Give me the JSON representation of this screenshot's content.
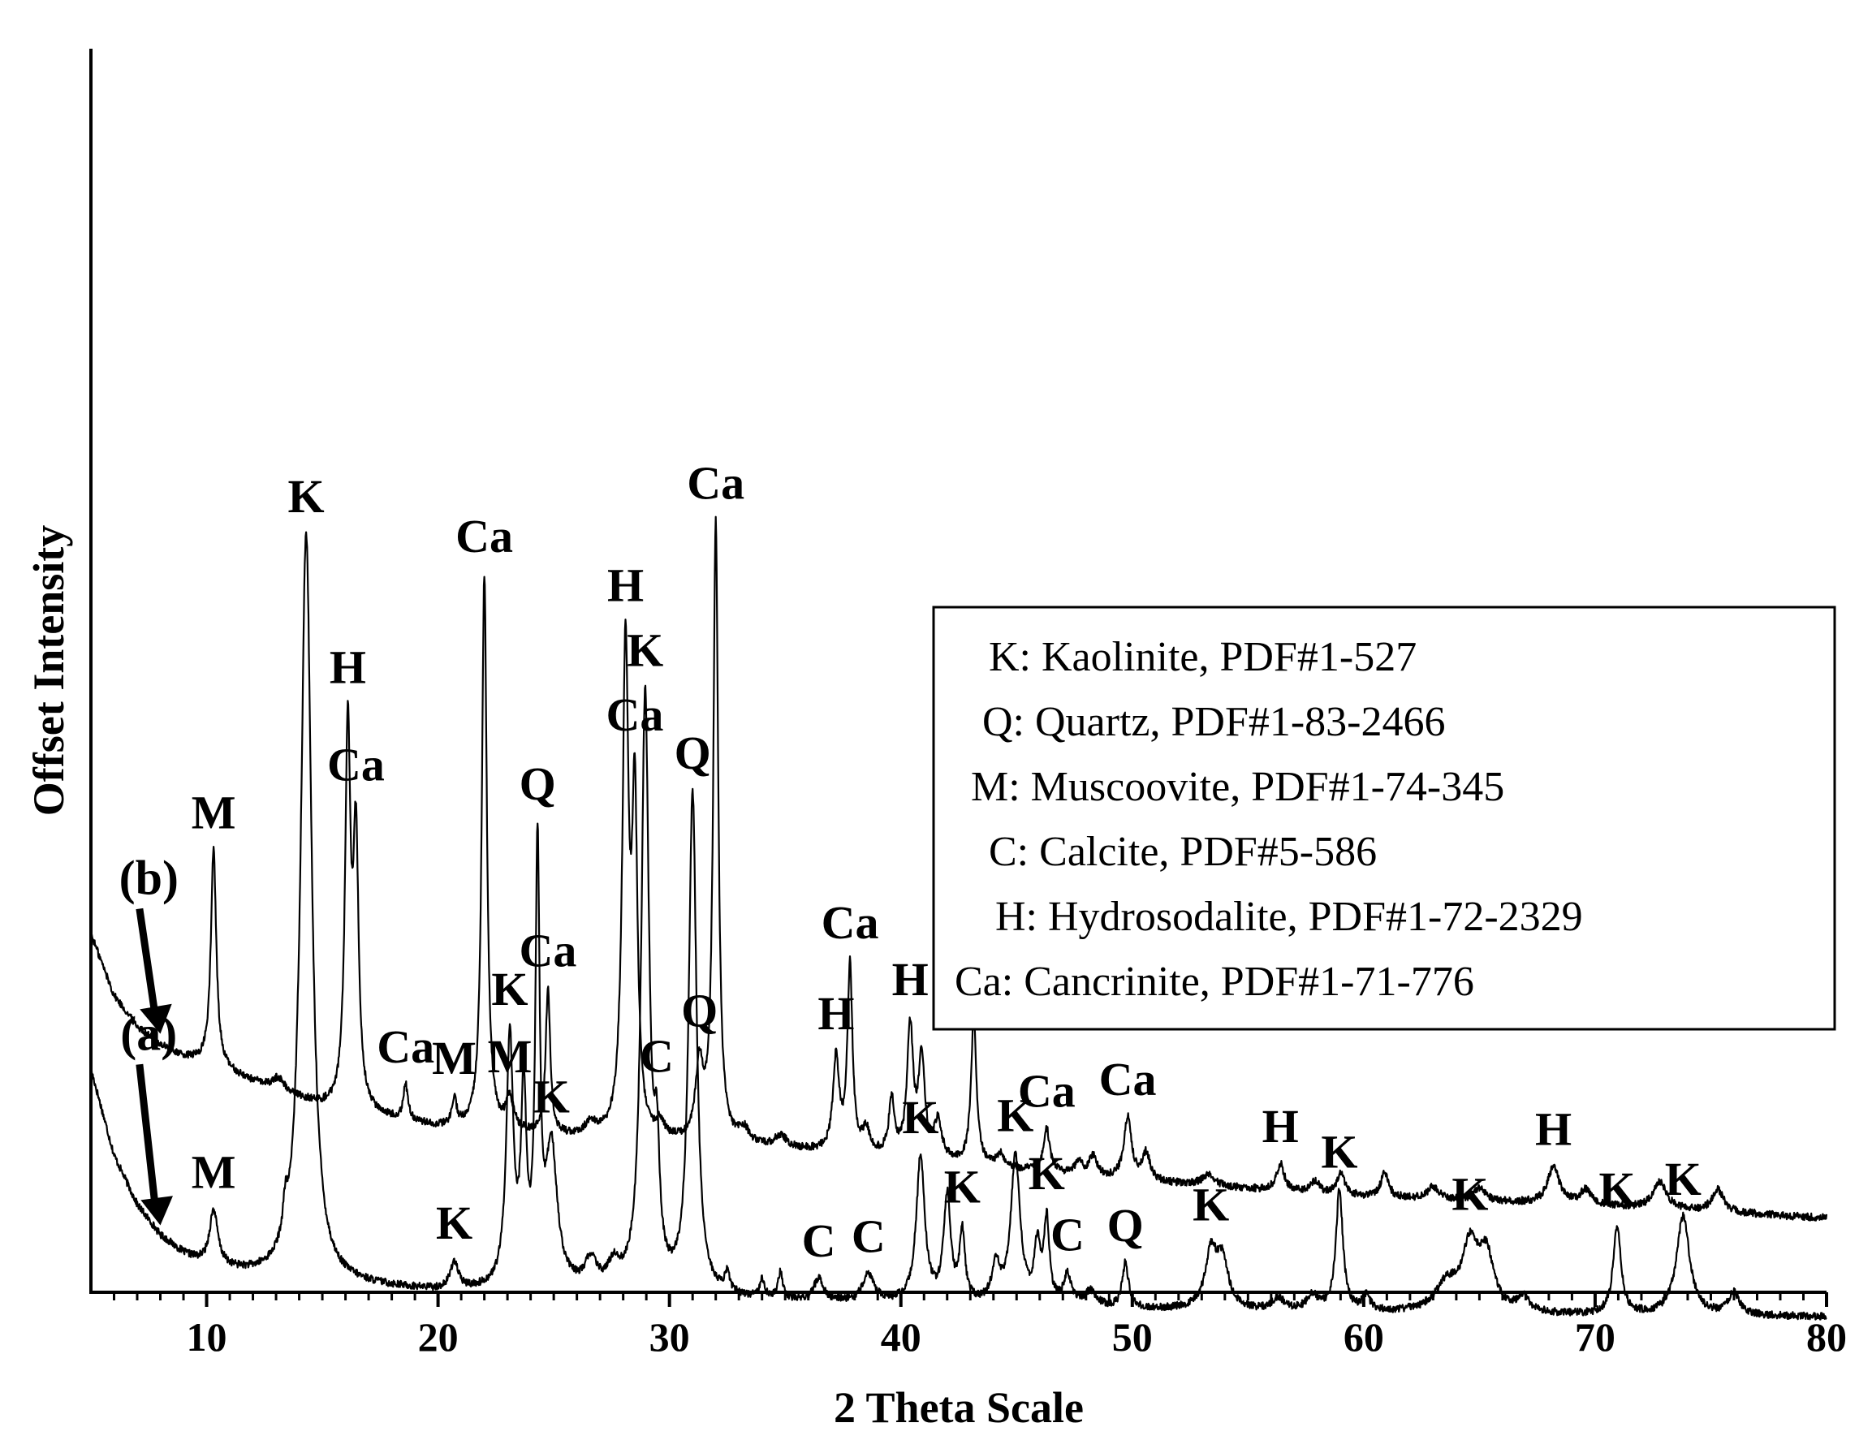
{
  "chart_data": {
    "type": "line",
    "xlabel": "2 Theta Scale",
    "ylabel": "Offset Intensity",
    "xlim": [
      5,
      80
    ],
    "x_ticks": [
      10,
      20,
      30,
      40,
      50,
      60,
      70,
      80
    ],
    "x_tick_labels": [
      "10",
      "20",
      "30",
      "40",
      "50",
      "60",
      "70",
      "80"
    ],
    "y_ticks": "none",
    "series": [
      {
        "name": "(a)",
        "baseline": [
          [
            5,
            0.18
          ],
          [
            6,
            0.11
          ],
          [
            7,
            0.07
          ],
          [
            8,
            0.045
          ],
          [
            9,
            0.03
          ],
          [
            10,
            0.02
          ],
          [
            12,
            0.013
          ],
          [
            15,
            0.007
          ],
          [
            20,
            0.0
          ],
          [
            25,
            0.0
          ],
          [
            30,
            -0.004
          ],
          [
            35,
            -0.008
          ],
          [
            40,
            -0.01
          ],
          [
            50,
            -0.014
          ],
          [
            60,
            -0.017
          ],
          [
            70,
            -0.019
          ],
          [
            80,
            -0.02
          ]
        ],
        "peaks": [
          {
            "x": 10.3,
            "h": 0.045,
            "w": 0.22,
            "label": "M"
          },
          {
            "x": 13.4,
            "h": 0.025,
            "w": 0.12,
            "label": ""
          },
          {
            "x": 14.3,
            "h": 0.605,
            "w": 0.28,
            "label": "K"
          },
          {
            "x": 20.7,
            "h": 0.022,
            "w": 0.2,
            "label": "K"
          },
          {
            "x": 23.1,
            "h": 0.2,
            "w": 0.18,
            "label": "K"
          },
          {
            "x": 23.7,
            "h": 0.15,
            "w": 0.14,
            "label": ""
          },
          {
            "x": 24.3,
            "h": 0.345,
            "w": 0.11,
            "label": "Q"
          },
          {
            "x": 24.9,
            "h": 0.11,
            "w": 0.3,
            "label": "K"
          },
          {
            "x": 26.6,
            "h": 0.022,
            "w": 0.3,
            "label": ""
          },
          {
            "x": 27.6,
            "h": 0.018,
            "w": 0.3,
            "label": ""
          },
          {
            "x": 28.95,
            "h": 0.48,
            "w": 0.2,
            "label": "K"
          },
          {
            "x": 29.45,
            "h": 0.09,
            "w": 0.14,
            "label": "C"
          },
          {
            "x": 31.0,
            "h": 0.405,
            "w": 0.2,
            "label": "Q"
          },
          {
            "x": 32.5,
            "h": 0.016,
            "w": 0.12,
            "label": ""
          },
          {
            "x": 34.0,
            "h": 0.016,
            "w": 0.12,
            "label": ""
          },
          {
            "x": 34.8,
            "h": 0.022,
            "w": 0.12,
            "label": ""
          },
          {
            "x": 36.45,
            "h": 0.018,
            "w": 0.25,
            "label": "C"
          },
          {
            "x": 38.6,
            "h": 0.022,
            "w": 0.3,
            "label": "C"
          },
          {
            "x": 40.85,
            "h": 0.118,
            "w": 0.22,
            "label": "K"
          },
          {
            "x": 42.0,
            "h": 0.085,
            "w": 0.18,
            "label": ""
          },
          {
            "x": 42.65,
            "h": 0.056,
            "w": 0.14,
            "label": "K"
          },
          {
            "x": 44.1,
            "h": 0.03,
            "w": 0.2,
            "label": ""
          },
          {
            "x": 44.95,
            "h": 0.12,
            "w": 0.24,
            "label": "K"
          },
          {
            "x": 45.9,
            "h": 0.046,
            "w": 0.16,
            "label": ""
          },
          {
            "x": 46.3,
            "h": 0.066,
            "w": 0.14,
            "label": "K"
          },
          {
            "x": 47.2,
            "h": 0.024,
            "w": 0.2,
            "label": "C"
          },
          {
            "x": 48.2,
            "h": 0.012,
            "w": 0.3,
            "label": ""
          },
          {
            "x": 49.7,
            "h": 0.036,
            "w": 0.16,
            "label": "Q"
          },
          {
            "x": 53.4,
            "h": 0.045,
            "w": 0.3,
            "label": "K"
          },
          {
            "x": 53.9,
            "h": 0.038,
            "w": 0.3,
            "label": ""
          },
          {
            "x": 56.3,
            "h": 0.01,
            "w": 0.3,
            "label": ""
          },
          {
            "x": 57.8,
            "h": 0.012,
            "w": 0.3,
            "label": ""
          },
          {
            "x": 58.95,
            "h": 0.098,
            "w": 0.18,
            "label": "K"
          },
          {
            "x": 60.1,
            "h": 0.012,
            "w": 0.2,
            "label": ""
          },
          {
            "x": 63.6,
            "h": 0.022,
            "w": 0.6,
            "label": ""
          },
          {
            "x": 64.6,
            "h": 0.05,
            "w": 0.4,
            "label": "K"
          },
          {
            "x": 65.3,
            "h": 0.044,
            "w": 0.4,
            "label": ""
          },
          {
            "x": 66.9,
            "h": 0.012,
            "w": 0.3,
            "label": ""
          },
          {
            "x": 70.95,
            "h": 0.071,
            "w": 0.2,
            "label": "K"
          },
          {
            "x": 73.8,
            "h": 0.08,
            "w": 0.34,
            "label": "K"
          },
          {
            "x": 76.0,
            "h": 0.018,
            "w": 0.3,
            "label": ""
          }
        ]
      },
      {
        "name": "(b)",
        "baseline": [
          [
            5,
            0.29
          ],
          [
            6,
            0.24
          ],
          [
            7,
            0.215
          ],
          [
            8,
            0.2
          ],
          [
            9,
            0.19
          ],
          [
            10,
            0.185
          ],
          [
            12,
            0.17
          ],
          [
            15,
            0.15
          ],
          [
            20,
            0.133
          ],
          [
            25,
            0.125
          ],
          [
            30,
            0.12
          ],
          [
            35,
            0.115
          ],
          [
            40,
            0.108
          ],
          [
            50,
            0.09
          ],
          [
            60,
            0.077
          ],
          [
            70,
            0.07
          ],
          [
            80,
            0.06
          ]
        ],
        "peaks": [
          {
            "x": 10.3,
            "h": 0.175,
            "w": 0.14,
            "label": "M"
          },
          {
            "x": 13.1,
            "h": 0.01,
            "w": 0.3,
            "label": ""
          },
          {
            "x": 16.1,
            "h": 0.3,
            "w": 0.14,
            "label": "H"
          },
          {
            "x": 16.45,
            "h": 0.21,
            "w": 0.14,
            "label": "Ca"
          },
          {
            "x": 18.6,
            "h": 0.028,
            "w": 0.12,
            "label": "Ca"
          },
          {
            "x": 20.7,
            "h": 0.022,
            "w": 0.12,
            "label": "M"
          },
          {
            "x": 22.0,
            "h": 0.45,
            "w": 0.13,
            "label": "Ca"
          },
          {
            "x": 23.1,
            "h": 0.025,
            "w": 0.2,
            "label": "M"
          },
          {
            "x": 24.75,
            "h": 0.118,
            "w": 0.12,
            "label": "Ca"
          },
          {
            "x": 26.6,
            "h": 0.01,
            "w": 0.3,
            "label": ""
          },
          {
            "x": 28.1,
            "h": 0.39,
            "w": 0.16,
            "label": "H"
          },
          {
            "x": 28.5,
            "h": 0.26,
            "w": 0.14,
            "label": "Ca"
          },
          {
            "x": 29.6,
            "h": 0.012,
            "w": 0.2,
            "label": ""
          },
          {
            "x": 31.3,
            "h": 0.06,
            "w": 0.2,
            "label": "Q"
          },
          {
            "x": 32.0,
            "h": 0.5,
            "w": 0.13,
            "label": "Ca"
          },
          {
            "x": 33.2,
            "h": 0.012,
            "w": 0.3,
            "label": ""
          },
          {
            "x": 34.8,
            "h": 0.01,
            "w": 0.3,
            "label": ""
          },
          {
            "x": 37.2,
            "h": 0.075,
            "w": 0.16,
            "label": "H"
          },
          {
            "x": 37.8,
            "h": 0.15,
            "w": 0.13,
            "label": "Ca"
          },
          {
            "x": 38.5,
            "h": 0.018,
            "w": 0.2,
            "label": ""
          },
          {
            "x": 39.6,
            "h": 0.045,
            "w": 0.14,
            "label": ""
          },
          {
            "x": 40.4,
            "h": 0.105,
            "w": 0.16,
            "label": "H"
          },
          {
            "x": 40.9,
            "h": 0.08,
            "w": 0.16,
            "label": ""
          },
          {
            "x": 41.6,
            "h": 0.03,
            "w": 0.2,
            "label": ""
          },
          {
            "x": 43.15,
            "h": 0.118,
            "w": 0.14,
            "label": "Ca"
          },
          {
            "x": 44.3,
            "h": 0.01,
            "w": 0.2,
            "label": ""
          },
          {
            "x": 46.3,
            "h": 0.035,
            "w": 0.16,
            "label": "Ca"
          },
          {
            "x": 47.7,
            "h": 0.01,
            "w": 0.2,
            "label": ""
          },
          {
            "x": 48.3,
            "h": 0.016,
            "w": 0.2,
            "label": ""
          },
          {
            "x": 49.8,
            "h": 0.05,
            "w": 0.2,
            "label": "Ca"
          },
          {
            "x": 50.6,
            "h": 0.022,
            "w": 0.2,
            "label": ""
          },
          {
            "x": 53.3,
            "h": 0.01,
            "w": 0.3,
            "label": ""
          },
          {
            "x": 56.4,
            "h": 0.022,
            "w": 0.2,
            "label": "H"
          },
          {
            "x": 57.9,
            "h": 0.01,
            "w": 0.2,
            "label": ""
          },
          {
            "x": 59.0,
            "h": 0.018,
            "w": 0.2,
            "label": ""
          },
          {
            "x": 60.9,
            "h": 0.02,
            "w": 0.2,
            "label": ""
          },
          {
            "x": 63.0,
            "h": 0.01,
            "w": 0.3,
            "label": ""
          },
          {
            "x": 65.0,
            "h": 0.01,
            "w": 0.3,
            "label": ""
          },
          {
            "x": 68.2,
            "h": 0.03,
            "w": 0.3,
            "label": "H"
          },
          {
            "x": 69.6,
            "h": 0.012,
            "w": 0.3,
            "label": ""
          },
          {
            "x": 72.8,
            "h": 0.022,
            "w": 0.35,
            "label": ""
          },
          {
            "x": 75.3,
            "h": 0.018,
            "w": 0.3,
            "label": ""
          }
        ]
      }
    ],
    "legend": {
      "position": "right",
      "entries": [
        "K: Kaolinite, PDF#1-527",
        "Q: Quartz, PDF#1-83-2466",
        "M: Muscoovite, PDF#1-74-345",
        "C: Calcite, PDF#5-586",
        "H: Hydrosodalite, PDF#1-72-2329",
        "Ca: Cancrinite, PDF#1-71-776"
      ]
    },
    "grid": false
  }
}
